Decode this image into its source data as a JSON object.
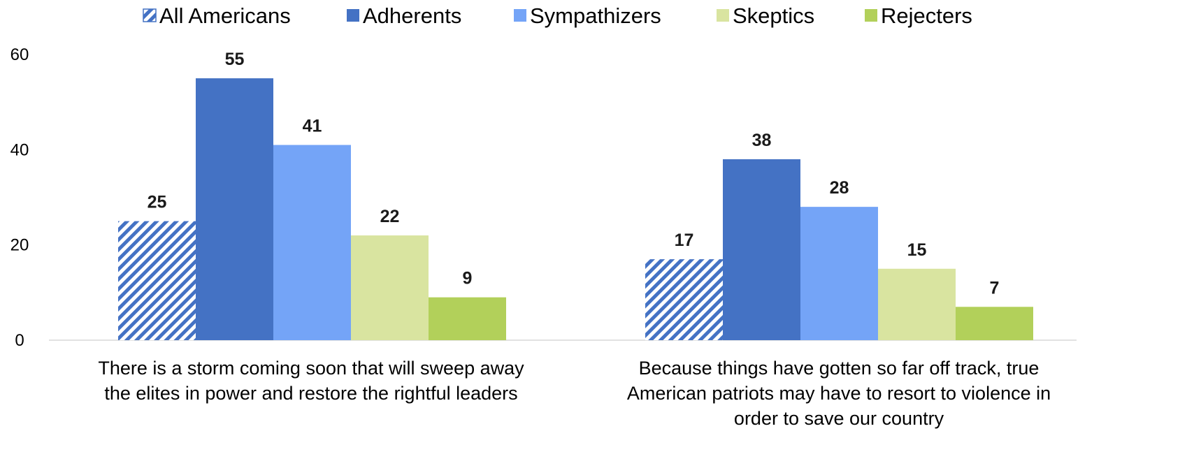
{
  "chart_data": {
    "type": "bar",
    "categories": [
      [
        "There is a storm coming soon that will sweep away",
        "the elites in power and restore the rightful leaders"
      ],
      [
        "Because things have gotten so far off track, true",
        "American patriots may have to resort to violence in",
        "order to save our country"
      ]
    ],
    "series": [
      {
        "name": "All Americans",
        "values": [
          25,
          17
        ],
        "color": "#4472C4",
        "pattern": "hatched"
      },
      {
        "name": "Adherents",
        "values": [
          55,
          38
        ],
        "color": "#4472C4"
      },
      {
        "name": "Sympathizers",
        "values": [
          41,
          28
        ],
        "color": "#74A4F7"
      },
      {
        "name": "Skeptics",
        "values": [
          22,
          15
        ],
        "color": "#D9E4A0"
      },
      {
        "name": "Rejecters",
        "values": [
          9,
          7
        ],
        "color": "#B2D05A"
      }
    ],
    "y_ticks": [
      0,
      20,
      40,
      60
    ],
    "ylim": [
      0,
      60
    ],
    "legend_position": "top",
    "grid": false
  }
}
